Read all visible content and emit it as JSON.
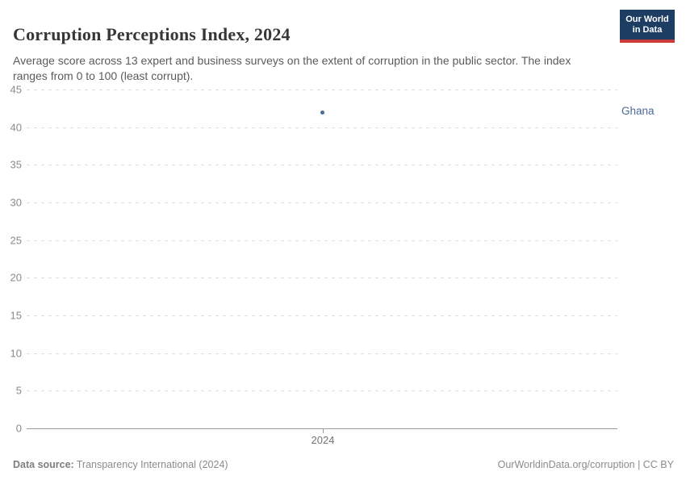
{
  "header": {
    "title": "Corruption Perceptions Index, 2024",
    "subtitle": "Average score across 13 expert and business surveys on the extent of corruption in the public sector. The index ranges from 0 to 100 (least corrupt)."
  },
  "logo": {
    "line1": "Our World",
    "line2": "in Data",
    "bg_color": "#1d3d63",
    "accent_color": "#cf3b3b"
  },
  "chart_data": {
    "type": "scatter",
    "title": "Corruption Perceptions Index, 2024",
    "x": [
      2024
    ],
    "series": [
      {
        "name": "Ghana",
        "values": [
          42
        ],
        "color": "#4C6A9C"
      }
    ],
    "xlabel": "",
    "ylabel": "",
    "ylim": [
      0,
      45
    ],
    "yticks": [
      0,
      5,
      10,
      15,
      20,
      25,
      30,
      35,
      40,
      45
    ],
    "xticks": [
      "2024"
    ],
    "grid": "horizontal dashed, solid baseline at 0",
    "legend_position": "right entity label",
    "gridline_color": "#dedede",
    "axis_color": "#9c9c9c"
  },
  "footer": {
    "source_label": "Data source:",
    "source_value": "Transparency International (2024)",
    "license": "OurWorldinData.org/corruption | CC BY"
  }
}
